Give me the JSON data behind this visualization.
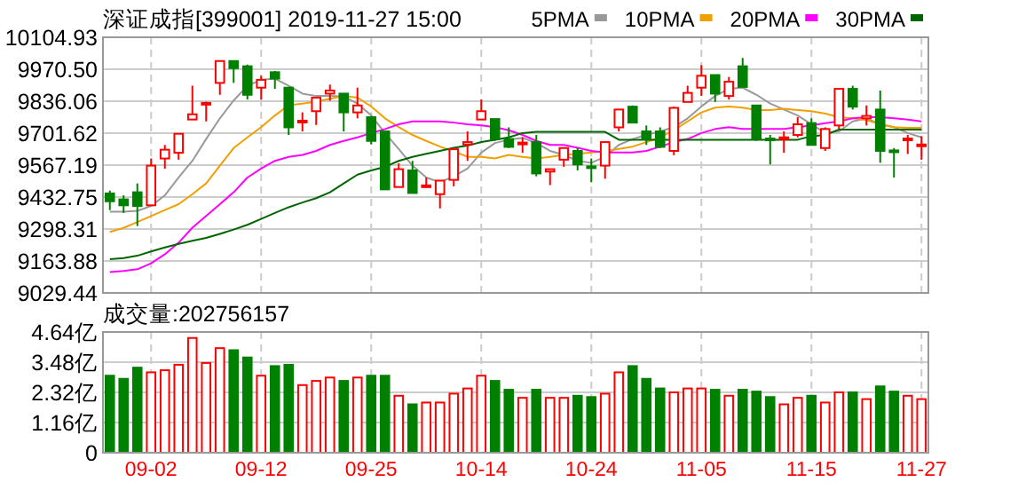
{
  "chart_data": [
    {
      "type": "candlestick",
      "title": "深证成指[399001] 2019-11-27 15:00",
      "categories": [
        null,
        null,
        null,
        null,
        null,
        null,
        null,
        null,
        null,
        null,
        null,
        null,
        null,
        null,
        null,
        null,
        null,
        null,
        null,
        null,
        null,
        null,
        null,
        null,
        null,
        null,
        null,
        null,
        null,
        null,
        null,
        null,
        null,
        null,
        null,
        null,
        null,
        null,
        null,
        null,
        null,
        null,
        null,
        null,
        null,
        null,
        null,
        null,
        null,
        null,
        null,
        null,
        null,
        null,
        null,
        null,
        null,
        null,
        null,
        null
      ],
      "ohlc": [
        [
          9448,
          9460,
          9378,
          9415
        ],
        [
          9423,
          9440,
          9366,
          9398
        ],
        [
          9453,
          9490,
          9311,
          9395
        ],
        [
          9398,
          9595,
          9398,
          9565
        ],
        [
          9595,
          9652,
          9552,
          9632
        ],
        [
          9619,
          9699,
          9590,
          9699
        ],
        [
          9759,
          9901,
          9759,
          9781
        ],
        [
          9824,
          9834,
          9751,
          9829
        ],
        [
          9913,
          10005,
          9863,
          10005
        ],
        [
          10005,
          10005,
          9913,
          9975
        ],
        [
          9983,
          9990,
          9843,
          9863
        ],
        [
          9893,
          9943,
          9843,
          9926
        ],
        [
          9958,
          9963,
          9888,
          9931
        ],
        [
          9893,
          9893,
          9694,
          9726
        ],
        [
          9749,
          9789,
          9709,
          9754
        ],
        [
          9794,
          9851,
          9736,
          9851
        ],
        [
          9868,
          9906,
          9838,
          9881
        ],
        [
          9868,
          9868,
          9709,
          9789
        ],
        [
          9789,
          9893,
          9764,
          9818
        ],
        [
          9769,
          9769,
          9654,
          9669
        ],
        [
          9709,
          9709,
          9465,
          9465
        ],
        [
          9475,
          9575,
          9475,
          9550
        ],
        [
          9545,
          9585,
          9450,
          9450
        ],
        [
          9478,
          9515,
          9475,
          9482
        ],
        [
          9445,
          9502,
          9385,
          9502
        ],
        [
          9505,
          9634,
          9478,
          9634
        ],
        [
          9654,
          9709,
          9585,
          9664
        ],
        [
          9759,
          9843,
          9759,
          9794
        ],
        [
          9761,
          9761,
          9669,
          9677
        ],
        [
          9677,
          9726,
          9639,
          9644
        ],
        [
          9657,
          9684,
          9619,
          9662
        ],
        [
          9664,
          9694,
          9520,
          9532
        ],
        [
          9540,
          9552,
          9483,
          9550
        ],
        [
          9590,
          9639,
          9560,
          9639
        ],
        [
          9627,
          9639,
          9545,
          9570
        ],
        [
          9562,
          9595,
          9495,
          9557
        ],
        [
          9565,
          9664,
          9510,
          9664
        ],
        [
          9726,
          9801,
          9709,
          9801
        ],
        [
          9813,
          9818,
          9746,
          9746
        ],
        [
          9709,
          9734,
          9652,
          9677
        ],
        [
          9709,
          9726,
          9639,
          9644
        ],
        [
          9627,
          9813,
          9609,
          9808
        ],
        [
          9833,
          9901,
          9833,
          9871
        ],
        [
          9893,
          9988,
          9858,
          9943
        ],
        [
          9946,
          9946,
          9833,
          9868
        ],
        [
          9858,
          9938,
          9843,
          9918
        ],
        [
          9983,
          10018,
          9896,
          9896
        ],
        [
          9818,
          9818,
          9669,
          9677
        ],
        [
          9679,
          9694,
          9570,
          9674
        ],
        [
          9677,
          9709,
          9619,
          9684
        ],
        [
          9694,
          9769,
          9684,
          9739
        ],
        [
          9744,
          9764,
          9652,
          9652
        ],
        [
          9639,
          9726,
          9627,
          9719
        ],
        [
          9734,
          9888,
          9719,
          9888
        ],
        [
          9888,
          9901,
          9801,
          9813
        ],
        [
          9764,
          9818,
          9734,
          9774
        ],
        [
          9801,
          9881,
          9577,
          9627
        ],
        [
          9629,
          9639,
          9515,
          9624
        ],
        [
          9674,
          9694,
          9614,
          9679
        ],
        [
          9649,
          9689,
          9590,
          9654
        ]
      ],
      "colors": [
        "#008000",
        "#008000",
        "#008000",
        "#ff0000",
        "#ff0000",
        "#ff0000",
        "#ff0000",
        "#ff0000",
        "#ff0000",
        "#008000",
        "#008000",
        "#ff0000",
        "#008000",
        "#008000",
        "#ff0000",
        "#ff0000",
        "#ff0000",
        "#008000",
        "#ff0000",
        "#008000",
        "#008000",
        "#ff0000",
        "#008000",
        "#ff0000",
        "#ff0000",
        "#ff0000",
        "#ff0000",
        "#ff0000",
        "#008000",
        "#008000",
        "#ff0000",
        "#008000",
        "#ff0000",
        "#ff0000",
        "#008000",
        "#008000",
        "#ff0000",
        "#ff0000",
        "#008000",
        "#008000",
        "#008000",
        "#ff0000",
        "#ff0000",
        "#ff0000",
        "#008000",
        "#ff0000",
        "#008000",
        "#008000",
        "#008000",
        "#ff0000",
        "#ff0000",
        "#008000",
        "#ff0000",
        "#ff0000",
        "#008000",
        "#ff0000",
        "#008000",
        "#008000",
        "#ff0000",
        "#ff0000"
      ],
      "series": [
        {
          "name": "5PMA",
          "type": "line",
          "color": "#999999",
          "values": [
            9371,
            9371,
            9375,
            9395,
            9440,
            9515,
            9585,
            9677,
            9764,
            9839,
            9901,
            9926,
            9931,
            9901,
            9868,
            9858,
            9858,
            9856,
            9826,
            9776,
            9702,
            9635,
            9565,
            9515,
            9495,
            9520,
            9553,
            9620,
            9660,
            9674,
            9682,
            9660,
            9627,
            9610,
            9585,
            9577,
            9602,
            9652,
            9677,
            9694,
            9709,
            9727,
            9764,
            9814,
            9858,
            9888,
            9893,
            9863,
            9826,
            9801,
            9776,
            9739,
            9702,
            9709,
            9751,
            9764,
            9739,
            9727,
            9702,
            9684
          ]
        },
        {
          "name": "10PMA",
          "type": "line",
          "color": "#f0a000",
          "values": [
            9286,
            9303,
            9328,
            9353,
            9378,
            9403,
            9445,
            9490,
            9565,
            9639,
            9684,
            9727,
            9776,
            9819,
            9826,
            9834,
            9846,
            9858,
            9851,
            9814,
            9764,
            9727,
            9694,
            9669,
            9645,
            9625,
            9602,
            9602,
            9595,
            9610,
            9602,
            9595,
            9602,
            9610,
            9615,
            9620,
            9625,
            9635,
            9645,
            9664,
            9684,
            9714,
            9751,
            9789,
            9809,
            9814,
            9809,
            9799,
            9799,
            9804,
            9799,
            9794,
            9784,
            9769,
            9764,
            9757,
            9739,
            9727,
            9724,
            9724
          ]
        },
        {
          "name": "20PMA",
          "type": "line",
          "color": "#ff00ff",
          "values": [
            9117,
            9122,
            9129,
            9154,
            9192,
            9241,
            9304,
            9353,
            9403,
            9453,
            9515,
            9553,
            9585,
            9602,
            9610,
            9627,
            9652,
            9669,
            9684,
            9702,
            9719,
            9739,
            9751,
            9751,
            9751,
            9746,
            9739,
            9734,
            9727,
            9714,
            9694,
            9669,
            9652,
            9652,
            9640,
            9627,
            9620,
            9620,
            9620,
            9627,
            9645,
            9664,
            9677,
            9702,
            9719,
            9727,
            9719,
            9719,
            9719,
            9719,
            9727,
            9734,
            9744,
            9751,
            9764,
            9769,
            9769,
            9764,
            9759,
            9751
          ]
        },
        {
          "name": "30PMA",
          "type": "line",
          "color": "#006400",
          "values": [
            9171,
            9176,
            9186,
            9204,
            9221,
            9236,
            9249,
            9261,
            9278,
            9296,
            9316,
            9341,
            9366,
            9390,
            9410,
            9428,
            9453,
            9490,
            9527,
            9545,
            9560,
            9585,
            9602,
            9615,
            9627,
            9640,
            9649,
            9664,
            9674,
            9684,
            9702,
            9707,
            9707,
            9707,
            9707,
            9707,
            9707,
            9674,
            9674,
            9674,
            9674,
            9674,
            9674,
            9674,
            9674,
            9674,
            9674,
            9674,
            9674,
            9674,
            9674,
            9689,
            9694,
            9717,
            9717,
            9717,
            9717,
            9717,
            9717,
            9717
          ]
        }
      ],
      "ylim": [
        9029.44,
        10104.93
      ],
      "yticks": [
        9029.44,
        9163.88,
        9298.31,
        9432.75,
        9567.19,
        9701.62,
        9836.06,
        {
          "value": 9970.5,
          "label": "9970.50"
        },
        10104.93
      ],
      "grid": true,
      "legend": "top right",
      "tick_labels": "y"
    },
    {
      "type": "bar",
      "subtitle": "成交量:202756157",
      "categories": [
        null,
        null,
        null,
        "09-02",
        null,
        null,
        null,
        null,
        null,
        null,
        null,
        "09-12",
        null,
        null,
        null,
        null,
        null,
        null,
        null,
        "09-25",
        null,
        null,
        null,
        null,
        null,
        null,
        null,
        "10-14",
        null,
        null,
        null,
        null,
        null,
        null,
        null,
        "10-24",
        null,
        null,
        null,
        null,
        null,
        null,
        null,
        "11-05",
        null,
        null,
        null,
        null,
        null,
        null,
        null,
        "11-15",
        null,
        null,
        null,
        null,
        null,
        null,
        null,
        "11-27"
      ],
      "values": [
        2.96,
        2.84,
        3.27,
        3.09,
        3.17,
        3.38,
        4.41,
        3.45,
        4.02,
        3.94,
        3.66,
        2.96,
        3.33,
        3.38,
        2.6,
        2.76,
        2.89,
        2.76,
        2.89,
        2.96,
        2.96,
        2.19,
        1.86,
        1.93,
        1.93,
        2.27,
        2.47,
        2.96,
        2.76,
        2.42,
        2.11,
        2.42,
        2.11,
        2.11,
        2.19,
        2.14,
        2.27,
        3.09,
        3.33,
        2.84,
        2.47,
        2.32,
        2.47,
        2.47,
        2.42,
        2.19,
        2.42,
        2.35,
        2.14,
        1.86,
        2.11,
        2.19,
        1.93,
        2.32,
        2.32,
        2.06,
        2.55,
        2.35,
        2.19,
        2.06
      ],
      "colors": [
        "#008000",
        "#008000",
        "#008000",
        "#ff0000",
        "#ff0000",
        "#ff0000",
        "#ff0000",
        "#ff0000",
        "#ff0000",
        "#008000",
        "#008000",
        "#ff0000",
        "#008000",
        "#008000",
        "#ff0000",
        "#ff0000",
        "#ff0000",
        "#008000",
        "#ff0000",
        "#008000",
        "#008000",
        "#ff0000",
        "#008000",
        "#ff0000",
        "#ff0000",
        "#ff0000",
        "#ff0000",
        "#ff0000",
        "#008000",
        "#008000",
        "#ff0000",
        "#008000",
        "#ff0000",
        "#ff0000",
        "#008000",
        "#008000",
        "#ff0000",
        "#ff0000",
        "#008000",
        "#008000",
        "#008000",
        "#ff0000",
        "#ff0000",
        "#ff0000",
        "#008000",
        "#ff0000",
        "#008000",
        "#008000",
        "#008000",
        "#ff0000",
        "#ff0000",
        "#008000",
        "#ff0000",
        "#ff0000",
        "#008000",
        "#ff0000",
        "#008000",
        "#008000",
        "#ff0000",
        "#ff0000"
      ],
      "ylim": [
        0,
        4.64
      ],
      "yticks": [
        0,
        {
          "value": 1.16,
          "label": "1.16亿"
        },
        {
          "value": 2.32,
          "label": "2.32亿"
        },
        {
          "value": 3.48,
          "label": "3.48亿"
        },
        {
          "value": 4.64,
          "label": "4.64亿"
        }
      ],
      "grid": true
    }
  ]
}
